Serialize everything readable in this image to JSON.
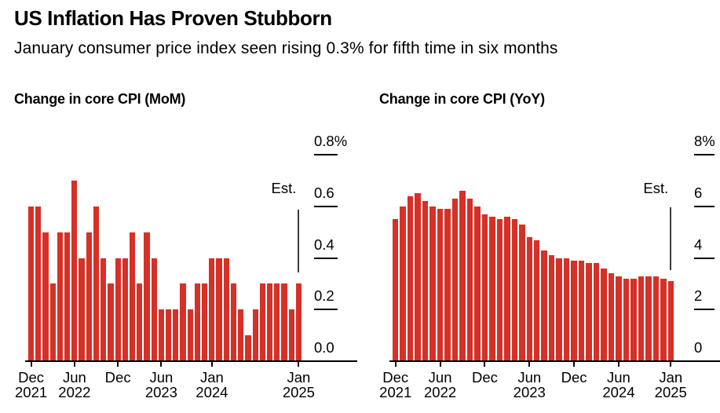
{
  "header": {
    "title": "US Inflation Has Proven Stubborn",
    "subtitle": "January consumer price index seen rising 0.3% for fifth time in six months"
  },
  "colors": {
    "bar": "#d63027",
    "axis": "#000000",
    "est_line": "#3d3d3d"
  },
  "chart_data": [
    {
      "type": "bar",
      "title": "Change in core CPI (MoM)",
      "ylabel_unit": "%",
      "ymax": 0.8,
      "grid": false,
      "legend": "none",
      "ylabels": [
        {
          "text": "0.8%",
          "value": 0.8,
          "tick": true
        },
        {
          "text": "0.6",
          "value": 0.6,
          "tick": true
        },
        {
          "text": "0.4",
          "value": 0.4,
          "tick": true
        },
        {
          "text": "0.2",
          "value": 0.2,
          "tick": true
        },
        {
          "text": "0.0",
          "value": 0.0,
          "tick": false
        }
      ],
      "categories": [
        "Dec 2021",
        "Jan 2022",
        "Feb 2022",
        "Mar 2022",
        "Apr 2022",
        "May 2022",
        "Jun 2022",
        "Jul 2022",
        "Aug 2022",
        "Sep 2022",
        "Oct 2022",
        "Nov 2022",
        "Dec 2022",
        "Jan 2023",
        "Feb 2023",
        "Mar 2023",
        "Apr 2023",
        "May 2023",
        "Jun 2023",
        "Jul 2023",
        "Aug 2023",
        "Sep 2023",
        "Oct 2023",
        "Nov 2023",
        "Dec 2023",
        "Jan 2024",
        "Feb 2024",
        "Mar 2024",
        "Apr 2024",
        "May 2024",
        "Jun 2024",
        "Jul 2024",
        "Aug 2024",
        "Sep 2024",
        "Oct 2024",
        "Nov 2024",
        "Dec 2024",
        "Jan 2025"
      ],
      "values": [
        0.6,
        0.6,
        0.5,
        0.3,
        0.5,
        0.5,
        0.7,
        0.4,
        0.5,
        0.6,
        0.4,
        0.3,
        0.4,
        0.4,
        0.5,
        0.3,
        0.5,
        0.4,
        0.2,
        0.2,
        0.2,
        0.3,
        0.2,
        0.3,
        0.3,
        0.4,
        0.4,
        0.4,
        0.3,
        0.2,
        0.1,
        0.2,
        0.3,
        0.3,
        0.3,
        0.3,
        0.2,
        0.3
      ],
      "est": {
        "label": "Est.",
        "index": 37,
        "value": 0.3
      },
      "xticks": [
        {
          "index": 0,
          "line1": "Dec",
          "line2": "2021"
        },
        {
          "index": 6,
          "line1": "Jun",
          "line2": "2022"
        },
        {
          "index": 12,
          "line1": "Dec",
          "line2": ""
        },
        {
          "index": 18,
          "line1": "Jun",
          "line2": "2023"
        },
        {
          "index": 25,
          "line1": "Jan",
          "line2": "2024"
        },
        {
          "index": 37,
          "line1": "Jan",
          "line2": "2025"
        }
      ]
    },
    {
      "type": "bar",
      "title": "Change in core CPI (YoY)",
      "ylabel_unit": "%",
      "ymax": 8,
      "grid": false,
      "legend": "none",
      "ylabels": [
        {
          "text": "8%",
          "value": 8,
          "tick": true
        },
        {
          "text": "6",
          "value": 6,
          "tick": true
        },
        {
          "text": "4",
          "value": 4,
          "tick": true
        },
        {
          "text": "2",
          "value": 2,
          "tick": true
        },
        {
          "text": "0",
          "value": 0,
          "tick": false
        }
      ],
      "categories": [
        "Dec 2021",
        "Jan 2022",
        "Feb 2022",
        "Mar 2022",
        "Apr 2022",
        "May 2022",
        "Jun 2022",
        "Jul 2022",
        "Aug 2022",
        "Sep 2022",
        "Oct 2022",
        "Nov 2022",
        "Dec 2022",
        "Jan 2023",
        "Feb 2023",
        "Mar 2023",
        "Apr 2023",
        "May 2023",
        "Jun 2023",
        "Jul 2023",
        "Aug 2023",
        "Sep 2023",
        "Oct 2023",
        "Nov 2023",
        "Dec 2023",
        "Jan 2024",
        "Feb 2024",
        "Mar 2024",
        "Apr 2024",
        "May 2024",
        "Jun 2024",
        "Jul 2024",
        "Aug 2024",
        "Sep 2024",
        "Oct 2024",
        "Nov 2024",
        "Dec 2024",
        "Jan 2025"
      ],
      "values": [
        5.5,
        6.0,
        6.4,
        6.5,
        6.2,
        6.0,
        5.9,
        5.9,
        6.3,
        6.6,
        6.3,
        6.0,
        5.7,
        5.6,
        5.5,
        5.6,
        5.5,
        5.3,
        4.8,
        4.7,
        4.3,
        4.1,
        4.0,
        4.0,
        3.9,
        3.9,
        3.8,
        3.8,
        3.6,
        3.4,
        3.3,
        3.2,
        3.2,
        3.3,
        3.3,
        3.3,
        3.2,
        3.1
      ],
      "est": {
        "label": "Est.",
        "index": 37,
        "value": 3.1
      },
      "xticks": [
        {
          "index": 0,
          "line1": "Dec",
          "line2": "2021"
        },
        {
          "index": 6,
          "line1": "Jun",
          "line2": "2022"
        },
        {
          "index": 12,
          "line1": "Dec",
          "line2": ""
        },
        {
          "index": 18,
          "line1": "Jun",
          "line2": "2023"
        },
        {
          "index": 24,
          "line1": "Dec",
          "line2": ""
        },
        {
          "index": 30,
          "line1": "Jun",
          "line2": "2024"
        },
        {
          "index": 37,
          "line1": "Jan",
          "line2": "2025"
        }
      ]
    }
  ]
}
